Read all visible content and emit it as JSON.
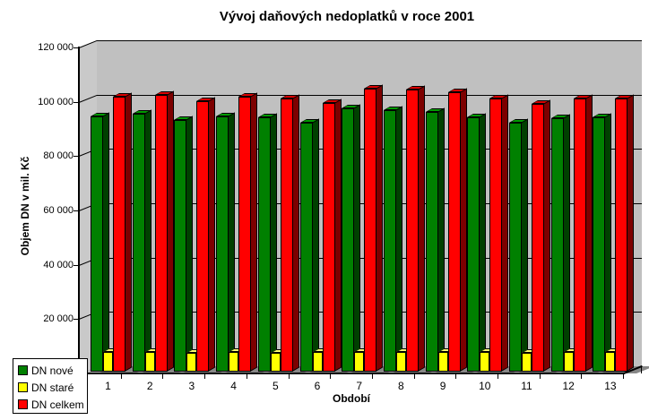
{
  "chart_data": {
    "type": "bar",
    "style": "3d-clustered-column",
    "title": "Vývoj daňových nedoplatků v roce 2001",
    "xlabel": "Období",
    "ylabel": "Objem DN v mil. Kč",
    "categories": [
      "1",
      "2",
      "3",
      "4",
      "5",
      "6",
      "7",
      "8",
      "9",
      "10",
      "11",
      "12",
      "13"
    ],
    "series": [
      {
        "name": "DN nové",
        "color": "#008000",
        "values": [
          93900,
          94900,
          92700,
          94000,
          93500,
          91600,
          96800,
          96400,
          95600,
          93500,
          91700,
          93300,
          93600
        ]
      },
      {
        "name": "DN staré",
        "color": "#ffff00",
        "values": [
          7200,
          7100,
          7000,
          7200,
          6900,
          7200,
          7300,
          7300,
          7200,
          7100,
          6800,
          7100,
          7100
        ]
      },
      {
        "name": "DN celkem",
        "color": "#ff0000",
        "values": [
          101100,
          102000,
          99700,
          101200,
          100400,
          98800,
          104100,
          103700,
          102800,
          100600,
          98500,
          100400,
          100700
        ]
      }
    ],
    "ylim": [
      0,
      120000
    ],
    "ytick_step": 20000,
    "ytick_labels_top_to_bottom": [
      "120 000",
      "100 000",
      "80 000",
      "60 000",
      "40 000",
      "20 000"
    ],
    "legend_position": "bottom-left",
    "grid": true,
    "wall_color": "#c0c0c0",
    "background_color": "#ffffff"
  }
}
